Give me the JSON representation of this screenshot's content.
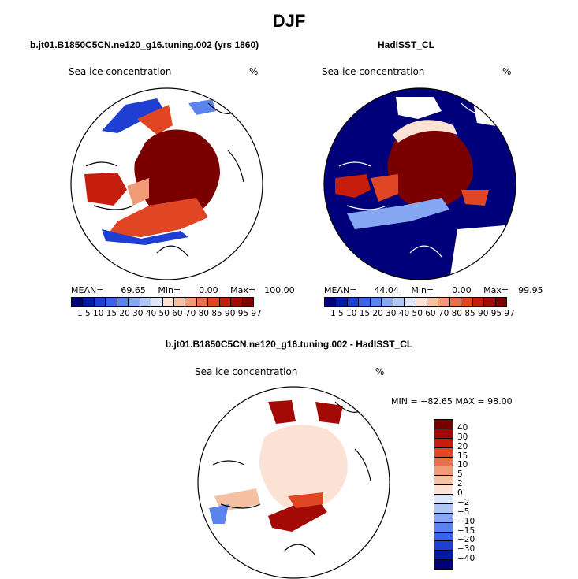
{
  "season": "DJF",
  "panels": [
    {
      "subtitle": "b.jt01.B1850C5CN.ne120_g16.tuning.002 (yrs 1860)",
      "variable": "Sea ice concentration",
      "units": "%",
      "stats": {
        "mean_label": "MEAN=",
        "mean": "69.65",
        "min_label": "Min=",
        "min": "0.00",
        "max_label": "Max=",
        "max": "100.00"
      }
    },
    {
      "subtitle": "HadISST_CL",
      "variable": "Sea ice concentration",
      "units": "%",
      "stats": {
        "mean_label": "MEAN=",
        "mean": "44.04",
        "min_label": "Min=",
        "min": "0.00",
        "max_label": "Max=",
        "max": "99.95"
      }
    },
    {
      "subtitle": "b.jt01.B1850C5CN.ne120_g16.tuning.002 - HadISST_CL",
      "variable": "Sea ice concentration",
      "units": "%",
      "stats_text": "MIN = −82.65 MAX =  98.00"
    }
  ],
  "chart_data": {
    "type": "heatmap",
    "projection": "north polar stereographic",
    "abs_colorbar": {
      "labels": "1 5 10 15 20 30 40 50 60 70 80 85 90 95 97",
      "levels": [
        1,
        5,
        10,
        15,
        20,
        30,
        40,
        50,
        60,
        70,
        80,
        85,
        90,
        95,
        97
      ],
      "colors": [
        "#00007a",
        "#001aa6",
        "#1f3fd2",
        "#3a63e8",
        "#5b84ef",
        "#86a7f2",
        "#b0c7f5",
        "#dce7fa",
        "#fbe2d4",
        "#f6c0a3",
        "#f09a78",
        "#ea6f4b",
        "#e04524",
        "#c41d0d",
        "#a30a05",
        "#7a0000"
      ]
    },
    "diff_colorbar": {
      "labels": [
        "40",
        "30",
        "20",
        "15",
        "10",
        "5",
        "2",
        "0",
        "−2",
        "−5",
        "−10",
        "−15",
        "−20",
        "−30",
        "−40"
      ],
      "colors": [
        "#7a0000",
        "#a30a05",
        "#c41d0d",
        "#e04524",
        "#ea6f4b",
        "#f09a78",
        "#f6c0a3",
        "#fbe2d4",
        "#dce7fa",
        "#b0c7f5",
        "#86a7f2",
        "#5b84ef",
        "#3a63e8",
        "#1f3fd2",
        "#001aa6",
        "#00007a"
      ]
    }
  }
}
